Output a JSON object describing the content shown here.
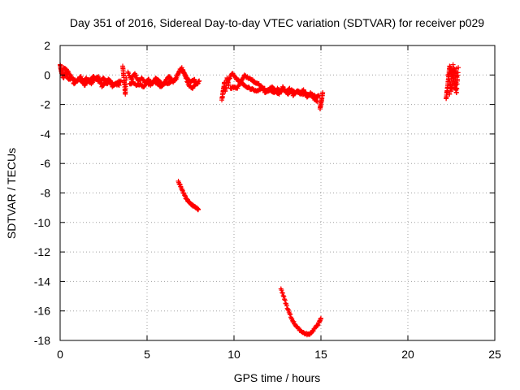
{
  "chart_data": {
    "type": "scatter",
    "title": "Day 351 of 2016, Sidereal Day-to-day VTEC variation (SDTVAR) for receiver p029",
    "xlabel": "GPS time / hours",
    "ylabel": "SDTVAR / TECUs",
    "xlim": [
      0,
      25
    ],
    "ylim": [
      -18,
      2
    ],
    "x_ticks": [
      0,
      5,
      10,
      15,
      20,
      25
    ],
    "y_ticks": [
      2,
      0,
      -2,
      -4,
      -6,
      -8,
      -10,
      -12,
      -14,
      -16,
      -18
    ],
    "grid": true,
    "marker": "plus",
    "colors": {
      "series": "#ff0000",
      "grid": "#a0a0a0",
      "axis": "#000000"
    },
    "series": [
      {
        "name": "SDTVAR p029",
        "segments": [
          {
            "x": [
              0.0,
              0.05,
              0.1,
              0.2,
              0.3,
              0.4,
              0.5,
              0.7,
              0.9,
              1.1,
              1.3,
              1.5,
              1.7,
              1.9,
              2.1,
              2.3,
              2.5,
              2.7,
              2.9,
              3.1,
              3.3,
              3.5
            ],
            "y": [
              0.7,
              0.4,
              0.1,
              -0.2,
              0.2,
              -0.1,
              -0.3,
              -0.2,
              -0.4,
              -0.3,
              -0.5,
              -0.2,
              -0.4,
              -0.1,
              -0.3,
              -0.5,
              -0.2,
              -0.6,
              -0.4,
              -0.7,
              -0.5,
              -0.4
            ]
          },
          {
            "x": [
              0.2,
              0.4,
              0.6,
              0.8,
              1.0,
              1.2,
              1.4,
              1.6,
              1.8,
              2.0,
              2.2,
              2.4,
              2.6,
              2.8,
              3.0,
              3.2,
              3.4
            ],
            "y": [
              0.5,
              0.3,
              0.0,
              -0.6,
              -0.3,
              -0.1,
              -0.7,
              -0.4,
              -0.6,
              -0.2,
              -0.1,
              -0.8,
              -0.5,
              -0.3,
              -0.8,
              -0.6,
              -0.7
            ]
          },
          {
            "x": [
              3.6,
              3.65,
              3.7,
              3.75,
              3.8
            ],
            "y": [
              0.6,
              0.0,
              -0.6,
              -1.3,
              -0.2
            ]
          },
          {
            "x": [
              3.9,
              4.1,
              4.3,
              4.5,
              4.7,
              4.9,
              5.1,
              5.3,
              5.5,
              5.7,
              5.9,
              6.1,
              6.3,
              6.5,
              6.7,
              6.9,
              7.1,
              7.3,
              7.5,
              7.7,
              7.9,
              8.0
            ],
            "y": [
              0.2,
              -0.3,
              0.1,
              -0.4,
              -0.2,
              -0.5,
              -0.3,
              -0.6,
              -0.2,
              -0.4,
              -0.7,
              -0.3,
              -0.1,
              -0.5,
              -0.2,
              0.4,
              0.2,
              -0.2,
              -0.5,
              -0.3,
              -0.6,
              -0.4
            ]
          },
          {
            "x": [
              4.0,
              4.2,
              4.4,
              4.6,
              4.8,
              5.0,
              5.2,
              5.4,
              5.6,
              5.8,
              6.0,
              6.2,
              6.4,
              6.6,
              6.8,
              7.0,
              7.2,
              7.4,
              7.6,
              7.8
            ],
            "y": [
              -0.6,
              -0.5,
              -0.7,
              -0.6,
              -0.8,
              -0.5,
              -0.7,
              -0.4,
              -0.6,
              -0.8,
              -0.5,
              -0.6,
              -0.4,
              -0.3,
              0.1,
              0.5,
              -0.1,
              -0.7,
              -0.9,
              -0.6
            ]
          },
          {
            "x": [
              6.8,
              6.95,
              7.1,
              7.25,
              7.4,
              7.55,
              7.7,
              7.85,
              7.95
            ],
            "y": [
              -7.2,
              -7.6,
              -8.0,
              -8.4,
              -8.6,
              -8.8,
              -8.9,
              -9.0,
              -9.1
            ]
          },
          {
            "x": [
              9.3,
              9.35,
              9.4,
              9.45,
              9.5,
              9.6,
              9.7
            ],
            "y": [
              -1.7,
              -1.3,
              -0.9,
              -0.5,
              -1.1,
              -0.2,
              -0.7
            ]
          },
          {
            "x": [
              9.7,
              9.9,
              10.1,
              10.3,
              10.5,
              10.7,
              10.9,
              11.1,
              11.3,
              11.5,
              11.7,
              11.9,
              12.1,
              12.3,
              12.5,
              12.7,
              12.9,
              13.1,
              13.3,
              13.5,
              13.7,
              13.9,
              14.1,
              14.3,
              14.5,
              14.7,
              14.9
            ],
            "y": [
              -0.3,
              0.1,
              -0.2,
              -0.4,
              -0.6,
              -0.8,
              -0.9,
              -1.0,
              -1.1,
              -1.0,
              -0.9,
              -1.1,
              -1.0,
              -1.2,
              -0.9,
              -1.1,
              -1.0,
              -1.3,
              -1.0,
              -1.2,
              -1.1,
              -1.3,
              -1.2,
              -1.4,
              -1.3,
              -1.5,
              -1.4
            ]
          },
          {
            "x": [
              9.8,
              10.0,
              10.2,
              10.4,
              10.6,
              10.8,
              11.0,
              11.2,
              11.4,
              11.6,
              11.8,
              12.0,
              12.2,
              12.4,
              12.6,
              12.8,
              13.0,
              13.2,
              13.4,
              13.6,
              13.8,
              14.0,
              14.2,
              14.4,
              14.6,
              14.8
            ],
            "y": [
              -0.9,
              -0.8,
              -0.9,
              -0.4,
              0.0,
              -0.2,
              -0.3,
              -0.5,
              -0.6,
              -0.8,
              -1.2,
              -1.0,
              -0.8,
              -1.1,
              -1.3,
              -0.8,
              -1.2,
              -0.9,
              -1.4,
              -1.1,
              -1.3,
              -1.0,
              -1.5,
              -1.2,
              -1.6,
              -1.8
            ]
          },
          {
            "x": [
              14.95,
              15.0,
              15.05,
              15.1
            ],
            "y": [
              -2.3,
              -1.9,
              -1.6,
              -1.2
            ]
          },
          {
            "x": [
              12.7,
              12.9,
              13.1,
              13.3,
              13.5,
              13.7,
              13.9,
              14.1,
              14.3,
              14.5,
              14.7,
              14.9,
              15.0
            ],
            "y": [
              -14.5,
              -15.2,
              -15.9,
              -16.5,
              -16.9,
              -17.2,
              -17.4,
              -17.55,
              -17.6,
              -17.4,
              -17.1,
              -16.8,
              -16.5
            ]
          },
          {
            "x": [
              22.2,
              22.25,
              22.3,
              22.35,
              22.4,
              22.5,
              22.6,
              22.7,
              22.8,
              22.9,
              22.3,
              22.5,
              22.7,
              22.85,
              22.4,
              22.6,
              22.8
            ],
            "y": [
              -1.6,
              -1.1,
              -0.6,
              -0.1,
              0.6,
              0.3,
              -0.2,
              -0.7,
              -1.2,
              0.5,
              0.0,
              -0.9,
              0.4,
              -0.3,
              -1.3,
              0.7,
              -0.9
            ]
          }
        ]
      }
    ]
  }
}
